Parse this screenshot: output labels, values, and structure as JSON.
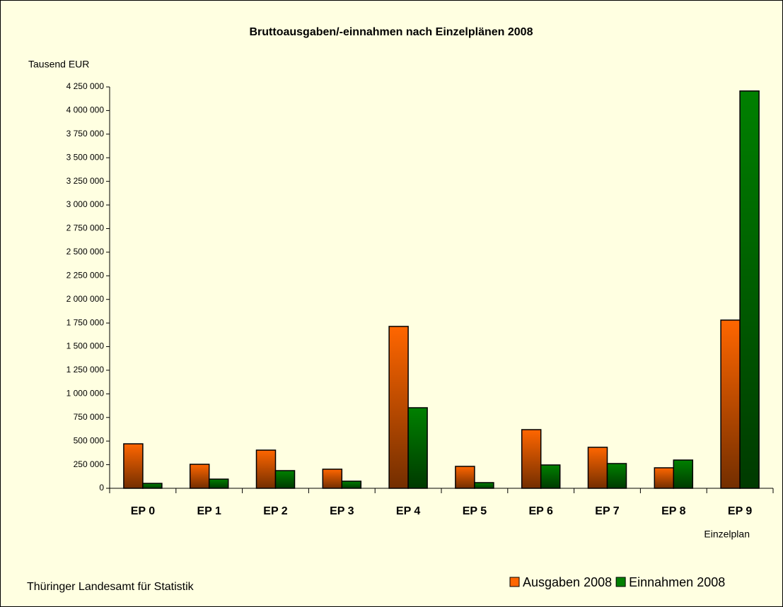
{
  "chart_data": {
    "type": "bar",
    "title": "Bruttoausgaben/-einnahmen nach Einzelplänen 2008",
    "y_label": "Tausend EUR",
    "x_label": "Einzelplan",
    "source": "Thüringer Landesamt für Statistik",
    "categories": [
      "EP 0",
      "EP 1",
      "EP 2",
      "EP 3",
      "EP 4",
      "EP 5",
      "EP 6",
      "EP 7",
      "EP 8",
      "EP 9"
    ],
    "series": [
      {
        "name": "Ausgaben 2008",
        "color": "#ff6600",
        "values": [
          471000,
          254000,
          404000,
          202000,
          1714000,
          232000,
          621000,
          434000,
          217000,
          1781000
        ]
      },
      {
        "name": "Einnahmen 2008",
        "color": "#008000",
        "values": [
          52000,
          97000,
          187000,
          75000,
          853000,
          60000,
          247000,
          262000,
          299000,
          4207000
        ]
      }
    ],
    "ylim": [
      0,
      4250000
    ],
    "yticks": [
      0,
      {
        "value": 250000,
        "label": "250 000"
      },
      {
        "value": 500000,
        "label": "500 000"
      },
      {
        "value": 750000,
        "label": "750 000"
      },
      {
        "value": 1000000,
        "label": "1 000 000"
      },
      {
        "value": 1250000,
        "label": "1 250 000"
      },
      {
        "value": 1500000,
        "label": "1 500 000"
      },
      {
        "value": 1750000,
        "label": "1 750 000"
      },
      {
        "value": 2000000,
        "label": "2 000 000"
      },
      {
        "value": 2250000,
        "label": "2 250 000"
      },
      {
        "value": 2500000,
        "label": "2 500 000"
      },
      {
        "value": 2750000,
        "label": "2 750 000"
      },
      {
        "value": 3000000,
        "label": "3 000 000"
      },
      {
        "value": 3250000,
        "label": "3 250 000"
      },
      {
        "value": 3500000,
        "label": "3 500 000"
      },
      {
        "value": 3750000,
        "label": "3 750 000"
      },
      {
        "value": 4000000,
        "label": "4 000 000"
      },
      {
        "value": 4250000,
        "label": "4 250 000"
      }
    ],
    "grid": false,
    "legend": "bottom-right"
  }
}
